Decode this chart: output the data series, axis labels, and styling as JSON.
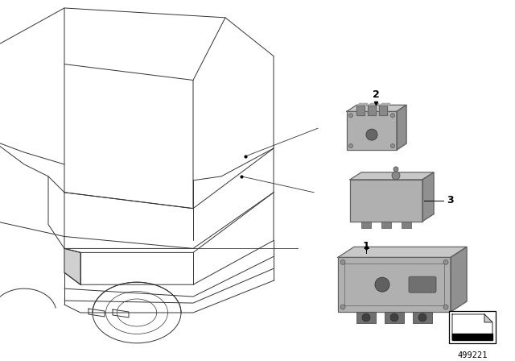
{
  "background_color": "#ffffff",
  "fig_width": 6.4,
  "fig_height": 4.48,
  "dpi": 100,
  "part_number": "499221",
  "car_color": "#000000",
  "line_color": "#000000",
  "part_fill": "#b0b0b0",
  "part_top": "#c8c8c8",
  "part_side": "#909090",
  "part_dark": "#787878",
  "part_edge": "#606060"
}
